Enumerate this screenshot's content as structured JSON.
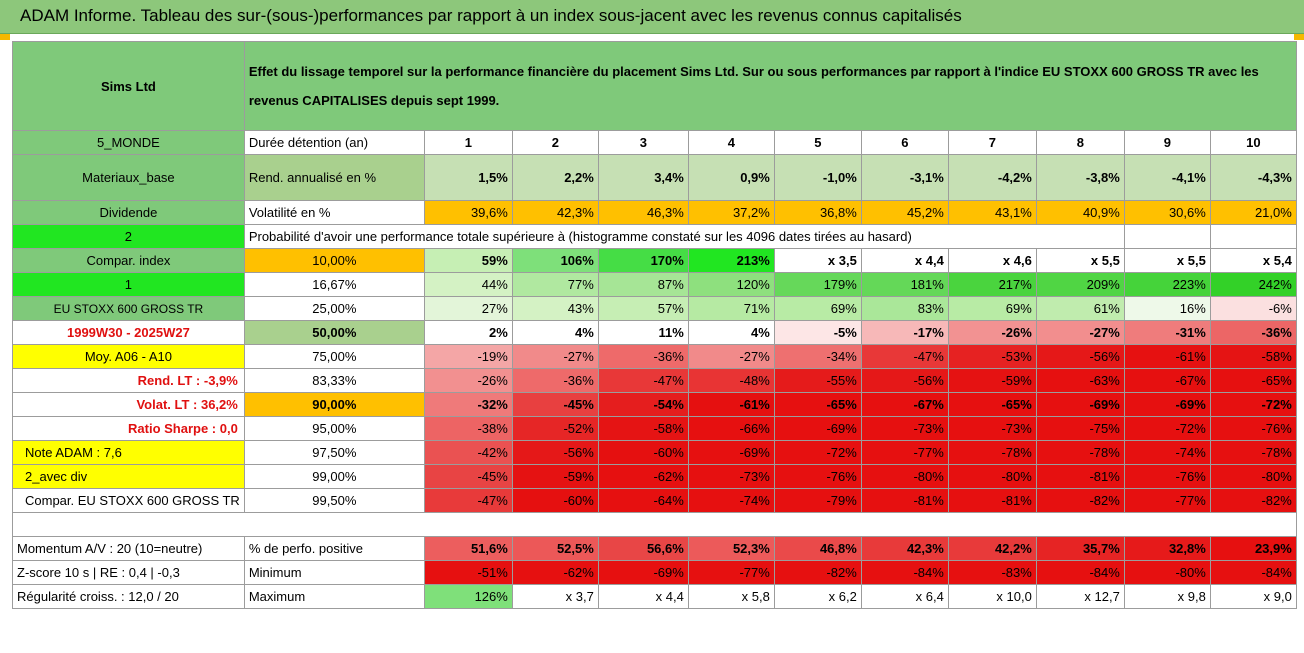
{
  "title": "ADAM Informe. Tableau des sur-(sous-)performances par rapport à un index sous-jacent avec les revenus connus capitalisés",
  "colors": {
    "accent_green": "#8dc77b",
    "orange": "#ffc000",
    "yellow": "#ffff00",
    "bright_green": "#21e621",
    "strong_red": "#e81010"
  },
  "left": {
    "company": "Sims Ltd",
    "region": "5_MONDE",
    "sector": "Materiaux_base",
    "dividend": "Dividende",
    "n2": "2",
    "compar_index": "Compar. index",
    "n1": "1",
    "index_name": "EU STOXX 600 GROSS TR",
    "period": "1999W30 - 2025W27",
    "moy": "Moy. A06 - A10",
    "rend_lt": "Rend. LT :   -3,9%",
    "volat_lt": "Volat. LT :   36,2%",
    "sharpe": "Ratio Sharpe :   0,0",
    "note": "Note ADAM : 7,6",
    "avec_div": "2_avec div",
    "compar_full": "Compar. EU STOXX 600 GROSS TR",
    "momentum": "Momentum A/V : 20 (10=neutre)",
    "zscore": "Z-score 10 s | RE : 0,4 | -0,3",
    "regularite": "Régularité croiss. : 12,0 / 20"
  },
  "description": "Effet du lissage temporel sur la performance financière du placement Sims Ltd. Sur ou sous performances par rapport à l'indice EU STOXX 600 GROSS TR avec les revenus CAPITALISES depuis sept 1999.",
  "header": {
    "duree_label": "Durée détention (an)",
    "years": [
      "1",
      "2",
      "3",
      "4",
      "5",
      "6",
      "7",
      "8",
      "9",
      "10"
    ],
    "rend_label": "Rend. annualisé en %",
    "rend": [
      "1,5%",
      "2,2%",
      "3,4%",
      "0,9%",
      "-1,0%",
      "-3,1%",
      "-4,2%",
      "-3,8%",
      "-4,1%",
      "-4,3%"
    ],
    "vol_label": "Volatilité en %",
    "vol": [
      "39,6%",
      "42,3%",
      "46,3%",
      "37,2%",
      "36,8%",
      "45,2%",
      "43,1%",
      "40,9%",
      "30,6%",
      "21,0%"
    ],
    "proba_label": "Probabilité d'avoir une performance totale supérieure à (histogramme constaté sur les 4096 dates tirées au hasard)"
  },
  "rows": [
    {
      "p": "10,00%",
      "v": [
        "59%",
        "106%",
        "170%",
        "213%",
        "x 3,5",
        "x 4,4",
        "x 4,6",
        "x 5,5",
        "x 5,5",
        "x 5,4"
      ],
      "bg": [
        "#c6efb4",
        "#7ee07a",
        "#45dd45",
        "#21e621",
        "#ffffff",
        "#ffffff",
        "#ffffff",
        "#ffffff",
        "#ffffff",
        "#ffffff"
      ]
    },
    {
      "p": "16,67%",
      "v": [
        "44%",
        "77%",
        "87%",
        "120%",
        "179%",
        "181%",
        "217%",
        "209%",
        "223%",
        "242%"
      ],
      "bg": [
        "#d4f2c4",
        "#b0e8a0",
        "#a6e596",
        "#8ee07e",
        "#66d85a",
        "#64d858",
        "#4ad43e",
        "#50d544",
        "#45d33a",
        "#33d128"
      ]
    },
    {
      "p": "25,00%",
      "v": [
        "27%",
        "43%",
        "57%",
        "71%",
        "69%",
        "83%",
        "69%",
        "61%",
        "16%",
        "-6%"
      ],
      "bg": [
        "#e3f5d9",
        "#d4f2c4",
        "#c6eeb4",
        "#b6eaa3",
        "#b8eba5",
        "#aae799",
        "#b8eba5",
        "#c0ecae",
        "#eef9e9",
        "#fbe0e0"
      ]
    },
    {
      "p": "50,00%",
      "v": [
        "2%",
        "4%",
        "11%",
        "4%",
        "-5%",
        "-17%",
        "-26%",
        "-27%",
        "-31%",
        "-36%"
      ],
      "bg": [
        "#ffffff",
        "#ffffff",
        "#ffffff",
        "#ffffff",
        "#fde6e6",
        "#f7b8b8",
        "#f29292",
        "#f28e8e",
        "#ef7c7c",
        "#ec6666"
      ]
    },
    {
      "p": "75,00%",
      "v": [
        "-19%",
        "-27%",
        "-36%",
        "-27%",
        "-34%",
        "-47%",
        "-53%",
        "-56%",
        "-61%",
        "-58%"
      ],
      "bg": [
        "#f4a6a6",
        "#f18a8a",
        "#ee6a6a",
        "#f18a8a",
        "#ee7070",
        "#e83838",
        "#e62222",
        "#e51818",
        "#e61111",
        "#e51414"
      ]
    },
    {
      "p": "83,33%",
      "v": [
        "-26%",
        "-36%",
        "-47%",
        "-48%",
        "-55%",
        "-56%",
        "-59%",
        "-63%",
        "-67%",
        "-65%"
      ],
      "bg": [
        "#f29090",
        "#ee6a6a",
        "#e83838",
        "#e83434",
        "#e51b1b",
        "#e51818",
        "#e51212",
        "#e61010",
        "#e61010",
        "#e61010"
      ]
    },
    {
      "p": "90,00%",
      "v": [
        "-32%",
        "-45%",
        "-54%",
        "-61%",
        "-65%",
        "-67%",
        "-65%",
        "-69%",
        "-69%",
        "-72%"
      ],
      "bg": [
        "#ef7a7a",
        "#e84040",
        "#e51e1e",
        "#e51010",
        "#e61010",
        "#e61010",
        "#e61010",
        "#e61010",
        "#e61010",
        "#e61010"
      ]
    },
    {
      "p": "95,00%",
      "v": [
        "-38%",
        "-52%",
        "-58%",
        "-66%",
        "-69%",
        "-73%",
        "-73%",
        "-75%",
        "-72%",
        "-76%"
      ],
      "bg": [
        "#ed6464",
        "#e62626",
        "#e51414",
        "#e61010",
        "#e61010",
        "#e61010",
        "#e61010",
        "#e61010",
        "#e61010",
        "#e61010"
      ]
    },
    {
      "p": "97,50%",
      "v": [
        "-42%",
        "-56%",
        "-60%",
        "-69%",
        "-72%",
        "-77%",
        "-78%",
        "-78%",
        "-74%",
        "-78%"
      ],
      "bg": [
        "#ea5252",
        "#e51818",
        "#e51010",
        "#e61010",
        "#e61010",
        "#e61010",
        "#e61010",
        "#e61010",
        "#e61010",
        "#e61010"
      ]
    },
    {
      "p": "99,00%",
      "v": [
        "-45%",
        "-59%",
        "-62%",
        "-73%",
        "-76%",
        "-80%",
        "-80%",
        "-81%",
        "-76%",
        "-80%"
      ],
      "bg": [
        "#e84444",
        "#e51212",
        "#e61010",
        "#e61010",
        "#e61010",
        "#e61010",
        "#e61010",
        "#e61010",
        "#e61010",
        "#e61010"
      ]
    },
    {
      "p": "99,50%",
      "v": [
        "-47%",
        "-60%",
        "-64%",
        "-74%",
        "-79%",
        "-81%",
        "-81%",
        "-82%",
        "-77%",
        "-82%"
      ],
      "bg": [
        "#e83a3a",
        "#e51010",
        "#e61010",
        "#e61010",
        "#e61010",
        "#e61010",
        "#e61010",
        "#e61010",
        "#e61010",
        "#e61010"
      ]
    }
  ],
  "bottom": {
    "pos_label": "% de perfo. positive",
    "pos": [
      "51,6%",
      "52,5%",
      "56,6%",
      "52,3%",
      "46,8%",
      "42,3%",
      "42,2%",
      "35,7%",
      "32,8%",
      "23,9%"
    ],
    "pos_bg": [
      "#ec5e5e",
      "#ec5858",
      "#e84646",
      "#ec5a5a",
      "#ea4a4a",
      "#e83a3a",
      "#e83a3a",
      "#e62424",
      "#e61a1a",
      "#e61010"
    ],
    "min_label": "Minimum",
    "min": [
      "-51%",
      "-62%",
      "-69%",
      "-77%",
      "-82%",
      "-84%",
      "-83%",
      "-84%",
      "-80%",
      "-84%"
    ],
    "max_label": "Maximum",
    "max": [
      "126%",
      "x 3,7",
      "x 4,4",
      "x 5,8",
      "x 6,2",
      "x 6,4",
      "x 10,0",
      "x 12,7",
      "x 9,8",
      "x 9,0"
    ]
  }
}
